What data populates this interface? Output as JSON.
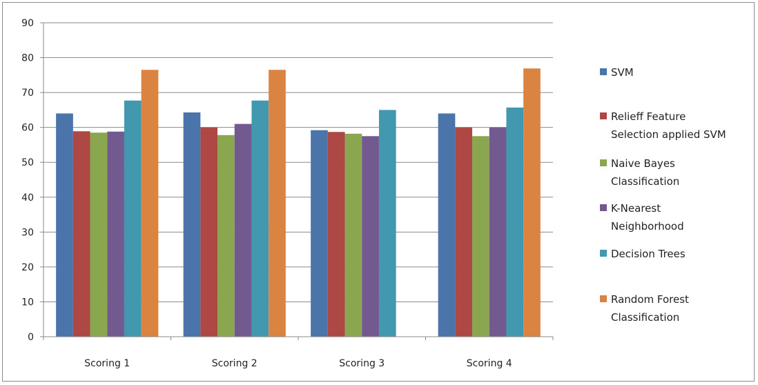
{
  "chart_data": {
    "type": "bar",
    "categories": [
      "Scoring 1",
      "Scoring 2",
      "Scoring 3",
      "Scoring 4"
    ],
    "series": [
      {
        "name": "SVM",
        "color": "#4a74aa",
        "values": [
          64,
          64.3,
          59.2,
          64
        ]
      },
      {
        "name": "Relieff Feature Selection applied SVM",
        "color": "#ad4845",
        "values": [
          58.9,
          60,
          58.7,
          60
        ]
      },
      {
        "name": "Naive Bayes Classification",
        "color": "#8aa64f",
        "values": [
          58.5,
          57.8,
          58.2,
          57.5
        ]
      },
      {
        "name": "K-Nearest Neighborhood",
        "color": "#725990",
        "values": [
          58.8,
          61,
          57.5,
          60
        ]
      },
      {
        "name": "Decision Trees",
        "color": "#4198af",
        "values": [
          67.7,
          67.7,
          65,
          65.7
        ]
      },
      {
        "name": "Random Forest Classification",
        "color": "#db8441",
        "values": [
          76.5,
          76.5,
          null,
          76.9
        ]
      }
    ],
    "ylim": [
      0,
      90
    ],
    "yticks": [
      0,
      10,
      20,
      30,
      40,
      50,
      60,
      70,
      80,
      90
    ],
    "grid": true,
    "legend": "right",
    "legend_lines": [
      [
        "SVM"
      ],
      [
        "Relieff Feature",
        "Selection applied SVM"
      ],
      [
        "Naive Bayes",
        "Classification"
      ],
      [
        "K-Nearest",
        "Neighborhood"
      ],
      [
        "Decision Trees"
      ],
      [
        "Random Forest",
        "Classification"
      ]
    ]
  }
}
